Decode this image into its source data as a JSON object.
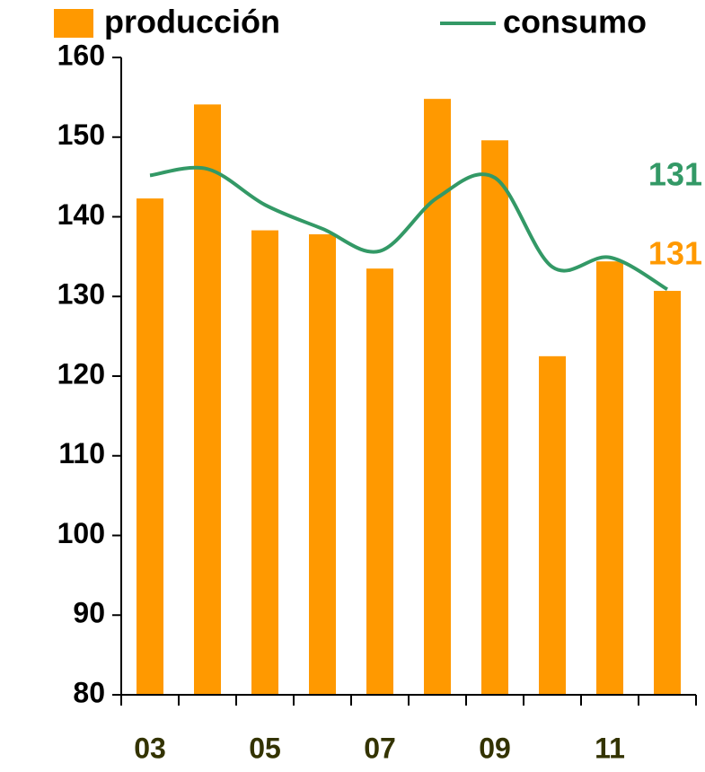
{
  "chart_data": {
    "type": "bar",
    "categories": [
      "03",
      null,
      "05",
      null,
      "07",
      null,
      "09",
      null,
      "11",
      null
    ],
    "series": [
      {
        "name": "producción",
        "type": "bar",
        "color": "#ff9900",
        "values": [
          142.3,
          154.1,
          138.3,
          137.8,
          133.5,
          154.8,
          149.6,
          122.5,
          134.4,
          130.7
        ],
        "value_labels": [
          null,
          null,
          null,
          null,
          null,
          null,
          null,
          null,
          null,
          "131"
        ]
      },
      {
        "name": "consumo",
        "type": "line",
        "color": "#339966",
        "values": [
          145.2,
          146.0,
          141.5,
          138.5,
          135.7,
          142.4,
          144.9,
          133.7,
          134.9,
          130.9
        ],
        "value_labels": [
          null,
          null,
          null,
          null,
          null,
          null,
          null,
          null,
          null,
          "131"
        ]
      }
    ],
    "ylim": [
      80,
      160
    ],
    "yticks": [
      80,
      90,
      100,
      110,
      120,
      130,
      140,
      150,
      160
    ]
  }
}
